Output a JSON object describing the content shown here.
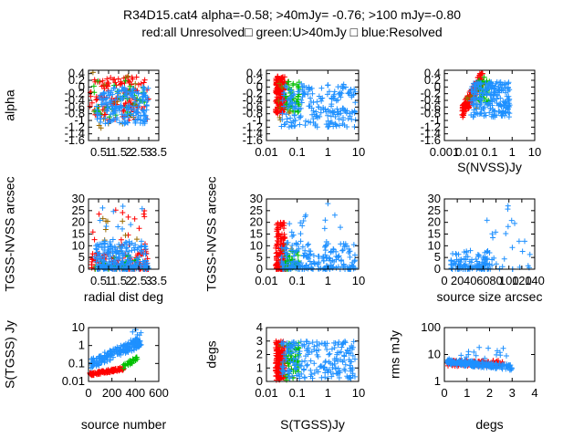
{
  "title_line1": "R34D15.cat4 alpha=-0.58; >40mJy= -0.76; >100 mJy=-0.80",
  "title_line2": "red:all Unresolved□ green:U>40mJy □ blue:Resolved",
  "colors": {
    "red": "#ff0000",
    "green": "#00c000",
    "blue": "#1e90ff",
    "olive": "#9a6a00"
  },
  "chart_data": [
    {
      "id": "p1",
      "type": "scatter",
      "ylabel": "alpha",
      "xlabel": "",
      "xlim": [
        0,
        3.5
      ],
      "ylim": [
        -1.6,
        0.5
      ],
      "xscale": "linear",
      "yscale": "linear",
      "xticks": [
        0.5,
        1,
        1.5,
        2,
        2.5,
        3,
        3.5
      ],
      "xticklabels": [
        "0.5",
        "1",
        "1.5",
        "2",
        "2.5",
        "3",
        "3.5"
      ],
      "yticks": [
        0.4,
        0.2,
        0,
        -0.2,
        -0.4,
        -0.6,
        -0.8,
        -1,
        -1.2,
        -1.4,
        -1.6
      ],
      "yticklabels": [
        "0.4",
        "0.2",
        "0",
        "-0.2",
        "-0.4",
        "-0.6",
        "-0.8",
        "-1",
        "-1.2",
        "-1.4",
        "-1.6"
      ],
      "clouds": [
        {
          "color": "red",
          "n": 130,
          "x": [
            0.05,
            3.0
          ],
          "y": [
            -1.0,
            0.3
          ],
          "xs": "lin",
          "ys": "lin",
          "shape": "box"
        },
        {
          "color": "olive",
          "n": 20,
          "x": [
            0.1,
            2.9
          ],
          "y": [
            -1.3,
            0.45
          ],
          "xs": "lin",
          "ys": "lin",
          "shape": "box"
        },
        {
          "color": "green",
          "n": 35,
          "x": [
            0.2,
            2.8
          ],
          "y": [
            -0.9,
            0.2
          ],
          "xs": "lin",
          "ys": "lin",
          "shape": "box"
        },
        {
          "color": "blue",
          "n": 180,
          "x": [
            0.4,
            3.0
          ],
          "y": [
            -1.1,
            0.0
          ],
          "xs": "lin",
          "ys": "lin",
          "shape": "box"
        }
      ]
    },
    {
      "id": "p2",
      "type": "scatter",
      "ylabel": "",
      "xlabel": "",
      "xlim": [
        0.01,
        10
      ],
      "ylim": [
        -1.6,
        0.5
      ],
      "xscale": "log",
      "yscale": "linear",
      "xticks": [
        0.01,
        0.1,
        1,
        10
      ],
      "xticklabels": [
        "0.01",
        "0.1",
        "1",
        "10"
      ],
      "yticks": [
        0.4,
        0.2,
        0,
        -0.2,
        -0.4,
        -0.6,
        -0.8,
        -1,
        -1.2,
        -1.4,
        -1.6
      ],
      "yticklabels": [
        "0.4",
        "0.2",
        "0",
        "-0.2",
        "-0.4",
        "-0.6",
        "-0.8",
        "-1",
        "-1.2",
        "-1.4",
        "-1.6"
      ],
      "clouds": [
        {
          "color": "red",
          "n": 150,
          "x": [
            0.02,
            0.04
          ],
          "y": [
            -0.8,
            0.35
          ],
          "xs": "log",
          "ys": "lin",
          "shape": "box"
        },
        {
          "color": "olive",
          "n": 15,
          "x": [
            0.025,
            0.08
          ],
          "y": [
            -1.1,
            0.2
          ],
          "xs": "log",
          "ys": "lin",
          "shape": "box"
        },
        {
          "color": "green",
          "n": 45,
          "x": [
            0.04,
            0.12
          ],
          "y": [
            -0.8,
            0.2
          ],
          "xs": "log",
          "ys": "lin",
          "shape": "box"
        },
        {
          "color": "blue",
          "n": 200,
          "x": [
            0.03,
            8
          ],
          "y": [
            -1.2,
            0.1
          ],
          "xs": "log",
          "ys": "lin",
          "shape": "box"
        }
      ]
    },
    {
      "id": "p3",
      "type": "scatter",
      "ylabel": "",
      "xlabel": "S(NVSS)Jy",
      "xlim": [
        0.001,
        10
      ],
      "ylim": [
        -1.6,
        0.5
      ],
      "xscale": "log",
      "yscale": "linear",
      "xticks": [
        0.001,
        0.01,
        0.1,
        1,
        10
      ],
      "xticklabels": [
        "0.001",
        "0.01",
        "0.1",
        "1",
        "10"
      ],
      "yticks": [
        0.4,
        0.2,
        0,
        -0.2,
        -0.4,
        -0.6,
        -0.8,
        -1,
        -1.2,
        -1.4,
        -1.6
      ],
      "yticklabels": [
        "0.4",
        "0.2",
        "0",
        "-0.2",
        "-0.4",
        "-0.6",
        "-0.8",
        "-1",
        "-1.2",
        "-1.4",
        "-1.6"
      ],
      "clouds": [
        {
          "color": "red",
          "n": 140,
          "x": [
            0.006,
            0.05
          ],
          "y": [
            -0.9,
            0.4
          ],
          "xs": "log",
          "ys": "lin",
          "shape": "diag"
        },
        {
          "color": "olive",
          "n": 10,
          "x": [
            0.008,
            0.04
          ],
          "y": [
            -0.8,
            0.0
          ],
          "xs": "log",
          "ys": "lin",
          "shape": "box"
        },
        {
          "color": "green",
          "n": 40,
          "x": [
            0.03,
            0.1
          ],
          "y": [
            -0.5,
            0.3
          ],
          "xs": "log",
          "ys": "lin",
          "shape": "box"
        },
        {
          "color": "blue",
          "n": 200,
          "x": [
            0.015,
            0.8
          ],
          "y": [
            -0.9,
            0.15
          ],
          "xs": "log",
          "ys": "lin",
          "shape": "box"
        }
      ]
    },
    {
      "id": "p4",
      "type": "scatter",
      "ylabel": "TGSS-NVSS arcsec",
      "xlabel": "radial dist deg",
      "xlim": [
        0,
        3.5
      ],
      "ylim": [
        0,
        30
      ],
      "xscale": "linear",
      "yscale": "linear",
      "xticks": [
        0.5,
        1,
        1.5,
        2,
        2.5,
        3,
        3.5
      ],
      "xticklabels": [
        "0.5",
        "1",
        "1.5",
        "2",
        "2.5",
        "3",
        "3.5"
      ],
      "yticks": [
        0,
        5,
        10,
        15,
        20,
        25,
        30
      ],
      "yticklabels": [
        "0",
        "5",
        "10",
        "15",
        "20",
        "25",
        "30"
      ],
      "clouds": [
        {
          "color": "red",
          "n": 120,
          "x": [
            0.1,
            3.0
          ],
          "y": [
            0,
            8
          ],
          "xs": "lin",
          "ys": "sq",
          "shape": "box"
        },
        {
          "color": "red",
          "n": 18,
          "x": [
            0.2,
            2.9
          ],
          "y": [
            8,
            26
          ],
          "xs": "lin",
          "ys": "lin",
          "shape": "box"
        },
        {
          "color": "olive",
          "n": 15,
          "x": [
            0.2,
            2.8
          ],
          "y": [
            0,
            22
          ],
          "xs": "lin",
          "ys": "sq",
          "shape": "box"
        },
        {
          "color": "green",
          "n": 30,
          "x": [
            0.3,
            2.8
          ],
          "y": [
            0,
            6
          ],
          "xs": "lin",
          "ys": "sq",
          "shape": "box"
        },
        {
          "color": "blue",
          "n": 220,
          "x": [
            0.3,
            3.0
          ],
          "y": [
            0,
            12
          ],
          "xs": "lin",
          "ys": "sq",
          "shape": "box"
        },
        {
          "color": "blue",
          "n": 10,
          "x": [
            0.4,
            2.9
          ],
          "y": [
            12,
            27
          ],
          "xs": "lin",
          "ys": "lin",
          "shape": "box"
        }
      ]
    },
    {
      "id": "p5",
      "type": "scatter",
      "ylabel": "TGSS-NVSS arcsec",
      "xlabel": "",
      "xlim": [
        0.01,
        10
      ],
      "ylim": [
        0,
        30
      ],
      "xscale": "log",
      "yscale": "linear",
      "xticks": [
        0.01,
        0.1,
        1,
        10
      ],
      "xticklabels": [
        "0.01",
        "0.1",
        "1",
        "10"
      ],
      "yticks": [
        0,
        5,
        10,
        15,
        20,
        25,
        30
      ],
      "yticklabels": [
        "0",
        "5",
        "10",
        "15",
        "20",
        "25",
        "30"
      ],
      "clouds": [
        {
          "color": "red",
          "n": 150,
          "x": [
            0.02,
            0.04
          ],
          "y": [
            0,
            20
          ],
          "xs": "log",
          "ys": "sq",
          "shape": "box"
        },
        {
          "color": "olive",
          "n": 12,
          "x": [
            0.025,
            0.07
          ],
          "y": [
            0,
            14
          ],
          "xs": "log",
          "ys": "sq",
          "shape": "box"
        },
        {
          "color": "green",
          "n": 40,
          "x": [
            0.04,
            0.12
          ],
          "y": [
            0,
            8
          ],
          "xs": "log",
          "ys": "sq",
          "shape": "box"
        },
        {
          "color": "blue",
          "n": 200,
          "x": [
            0.03,
            8
          ],
          "y": [
            0,
            12
          ],
          "xs": "log",
          "ys": "sq",
          "shape": "box"
        },
        {
          "color": "blue",
          "n": 15,
          "x": [
            0.05,
            3
          ],
          "y": [
            12,
            28
          ],
          "xs": "log",
          "ys": "lin",
          "shape": "box"
        }
      ]
    },
    {
      "id": "p6",
      "type": "scatter",
      "ylabel": "",
      "xlabel": "source size arcsec",
      "xlim": [
        0,
        140
      ],
      "ylim": [
        0,
        30
      ],
      "xscale": "linear",
      "yscale": "linear",
      "xticks": [
        0,
        20,
        40,
        60,
        80,
        100,
        120,
        140
      ],
      "xticklabels": [
        "0",
        "20",
        "40",
        "60",
        "80",
        "100",
        "120",
        "140"
      ],
      "yticks": [
        0,
        5,
        10,
        15,
        20,
        25,
        30
      ],
      "yticklabels": [
        "0",
        "5",
        "10",
        "15",
        "20",
        "25",
        "30"
      ],
      "clouds": [
        {
          "color": "blue",
          "n": 110,
          "x": [
            10,
            70
          ],
          "y": [
            0,
            8
          ],
          "xs": "lin",
          "ys": "sq",
          "shape": "box"
        },
        {
          "color": "blue",
          "n": 25,
          "x": [
            60,
            135
          ],
          "y": [
            0,
            20
          ],
          "xs": "lin",
          "ys": "sq",
          "shape": "box"
        },
        {
          "color": "blue",
          "n": 6,
          "x": [
            60,
            130
          ],
          "y": [
            15,
            28
          ],
          "xs": "lin",
          "ys": "lin",
          "shape": "box"
        }
      ]
    },
    {
      "id": "p7",
      "type": "scatter",
      "ylabel": "S(TGSS) Jy",
      "xlabel": "source number",
      "xlim": [
        0,
        600
      ],
      "ylim": [
        0.01,
        10
      ],
      "xscale": "linear",
      "yscale": "log",
      "xticks": [
        0,
        200,
        400,
        600
      ],
      "xticklabels": [
        "0",
        "200",
        "400",
        "600"
      ],
      "yticks": [
        0.01,
        0.1,
        1,
        10
      ],
      "yticklabels": [
        "0.01",
        "0.1",
        "1",
        "10"
      ],
      "clouds": [
        {
          "color": "red",
          "n": 110,
          "x": [
            5,
            300
          ],
          "y": [
            0.02,
            0.06
          ],
          "xs": "lin",
          "ys": "log",
          "shape": "rise"
        },
        {
          "color": "green",
          "n": 30,
          "x": [
            300,
            420
          ],
          "y": [
            0.05,
            0.25
          ],
          "xs": "lin",
          "ys": "log",
          "shape": "rise"
        },
        {
          "color": "blue",
          "n": 180,
          "x": [
            20,
            440
          ],
          "y": [
            0.05,
            2.5
          ],
          "xs": "lin",
          "ys": "log",
          "shape": "rise"
        },
        {
          "color": "blue",
          "n": 12,
          "x": [
            350,
            450
          ],
          "y": [
            1,
            8
          ],
          "xs": "lin",
          "ys": "log",
          "shape": "box"
        }
      ]
    },
    {
      "id": "p8",
      "type": "scatter",
      "ylabel": "degs",
      "xlabel": "S(TGSS)Jy",
      "xlim": [
        0.01,
        10
      ],
      "ylim": [
        0,
        4
      ],
      "xscale": "log",
      "yscale": "linear",
      "xticks": [
        0.01,
        0.1,
        1,
        10
      ],
      "xticklabels": [
        "0.01",
        "0.1",
        "1",
        "10"
      ],
      "yticks": [
        0,
        1,
        2,
        3,
        4
      ],
      "yticklabels": [
        "0",
        "1",
        "2",
        "3",
        "4"
      ],
      "clouds": [
        {
          "color": "red",
          "n": 150,
          "x": [
            0.02,
            0.04
          ],
          "y": [
            0.1,
            3.0
          ],
          "xs": "log",
          "ys": "lin",
          "shape": "box"
        },
        {
          "color": "olive",
          "n": 12,
          "x": [
            0.025,
            0.08
          ],
          "y": [
            0.1,
            2.8
          ],
          "xs": "log",
          "ys": "lin",
          "shape": "box"
        },
        {
          "color": "green",
          "n": 50,
          "x": [
            0.04,
            0.12
          ],
          "y": [
            0.1,
            2.9
          ],
          "xs": "log",
          "ys": "lin",
          "shape": "box"
        },
        {
          "color": "blue",
          "n": 200,
          "x": [
            0.03,
            8
          ],
          "y": [
            0.2,
            3.0
          ],
          "xs": "log",
          "ys": "lin",
          "shape": "box"
        }
      ]
    },
    {
      "id": "p9",
      "type": "scatter",
      "ylabel": "rms mJy",
      "xlabel": "degs",
      "xlim": [
        0,
        4
      ],
      "ylim": [
        1,
        100
      ],
      "xscale": "linear",
      "yscale": "log",
      "xticks": [
        0,
        1,
        2,
        3,
        4
      ],
      "xticklabels": [
        "0",
        "1",
        "2",
        "3",
        "4"
      ],
      "yticks": [
        1,
        10,
        100
      ],
      "yticklabels": [
        "1",
        "10",
        "100"
      ],
      "clouds": [
        {
          "color": "red",
          "n": 130,
          "x": [
            0.1,
            2.6
          ],
          "y": [
            3.6,
            6
          ],
          "xs": "lin",
          "ys": "log",
          "shape": "box"
        },
        {
          "color": "blue",
          "n": 200,
          "x": [
            0.1,
            3.0
          ],
          "y": [
            2.6,
            7
          ],
          "xs": "lin",
          "ys": "log",
          "shape": "fall"
        },
        {
          "color": "blue",
          "n": 15,
          "x": [
            0.5,
            2.8
          ],
          "y": [
            7,
            22
          ],
          "xs": "lin",
          "ys": "log",
          "shape": "box"
        }
      ]
    }
  ]
}
